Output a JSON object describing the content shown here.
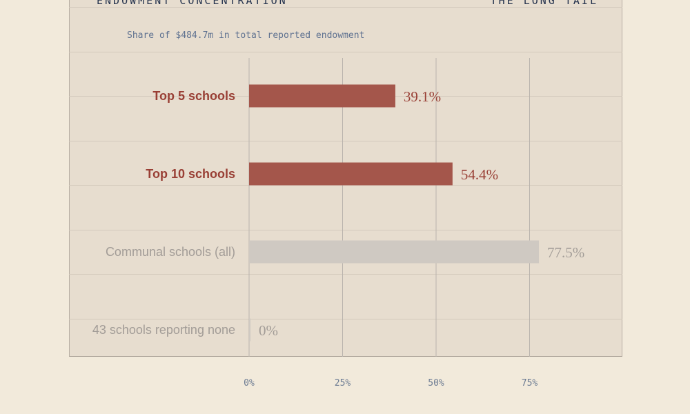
{
  "header": {
    "left": "ENDOWMENT CONCENTRATION",
    "right": "THE LONG TAIL"
  },
  "chart_data": {
    "type": "bar",
    "orientation": "horizontal",
    "subtitle": "Share of $484.7m in total reported endowment",
    "categories": [
      "Top 5 schools",
      "Top 10 schools",
      "Communal schools (all)",
      "43 schools reporting none"
    ],
    "values": [
      39.1,
      54.4,
      77.5,
      0
    ],
    "value_labels": [
      "39.1%",
      "54.4%",
      "77.5%",
      "0%"
    ],
    "highlight": [
      true,
      true,
      false,
      false
    ],
    "x_ticks": [
      0,
      25,
      50,
      75
    ],
    "x_tick_labels": [
      "0%",
      "25%",
      "50%",
      "75%"
    ],
    "xlim": [
      0,
      100
    ],
    "grid": true,
    "colors": {
      "highlight_bar": "#a4564b",
      "highlight_text": "#993f35",
      "muted_bar": "#cfc9c2",
      "muted_text": "#a29c97",
      "grid": "#b9b3ad"
    }
  }
}
